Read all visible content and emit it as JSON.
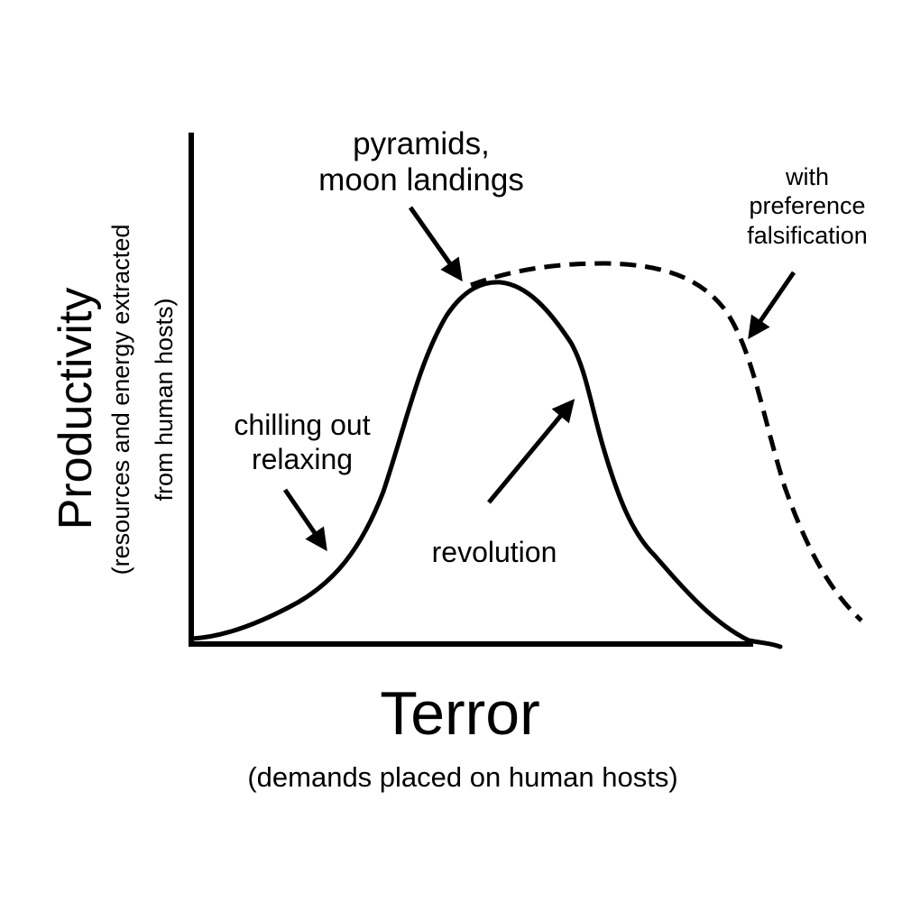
{
  "axes": {
    "y_label": "Productivity",
    "y_sublabel_line1": "(resources and energy extracted",
    "y_sublabel_line2": "from human hosts)",
    "x_label": "Terror",
    "x_sublabel": "(demands placed on human hosts)"
  },
  "annotations": {
    "peak_line1": "pyramids,",
    "peak_line2": "moon landings",
    "low_line1": "chilling out",
    "low_line2": "relaxing",
    "decline": "revolution",
    "dashed_line1": "with",
    "dashed_line2": "preference",
    "dashed_line3": "falsification"
  },
  "colors": {
    "ink": "#000000",
    "background": "#ffffff"
  }
}
